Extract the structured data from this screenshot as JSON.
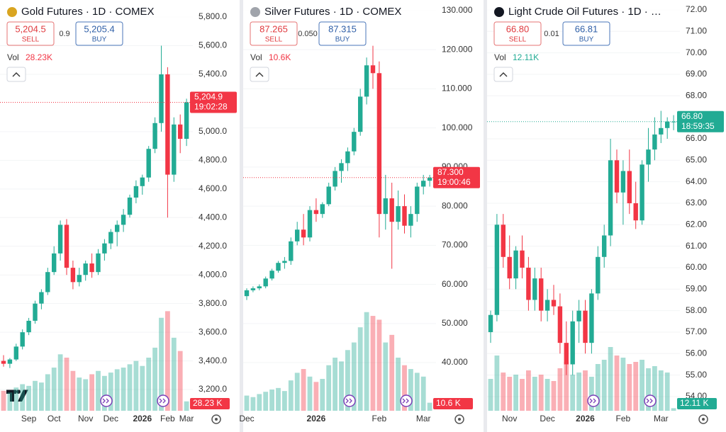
{
  "chart_data": [
    {
      "type": "candlestick",
      "title": "Gold Futures · 1D · COMEX",
      "sell": {
        "value": 5204.5,
        "label": "5,204.5"
      },
      "sell_label": "SELL",
      "spread": 0.9,
      "buy": {
        "value": 5205.4,
        "label": "5,205.4"
      },
      "buy_label": "BUY",
      "volume_label": "Vol",
      "volume": {
        "value": 28.23,
        "label": "28.23K"
      },
      "volume_marker": {
        "value": 28.23,
        "label": "28.23 K"
      },
      "last_price": {
        "value": 5204.9,
        "label": "5,204.9"
      },
      "countdown": "19:02:28",
      "icon_color": "#d9a521",
      "up_color": "#22ab94",
      "down_color": "#f23645",
      "last_color": "#f23645",
      "categories": [
        null,
        null,
        null,
        null,
        "Sep",
        null,
        null,
        null,
        "Oct",
        null,
        null,
        null,
        null,
        "Nov",
        null,
        null,
        null,
        "Dec",
        null,
        null,
        null,
        null,
        "2026",
        null,
        null,
        null,
        "Feb",
        null,
        null,
        "Mar"
      ],
      "open": [
        3400,
        3380,
        3410,
        3500,
        3600,
        3680,
        3800,
        3880,
        4020,
        4150,
        4350,
        4050,
        3950,
        4000,
        4080,
        4020,
        4150,
        4220,
        4300,
        4350,
        4420,
        4540,
        4620,
        4680,
        4880,
        5060,
        5400,
        4700,
        5050,
        4950
      ],
      "high": [
        3440,
        3420,
        3520,
        3620,
        3700,
        3820,
        3900,
        4050,
        4200,
        4380,
        4390,
        4100,
        4050,
        4100,
        4150,
        4180,
        4250,
        4320,
        4380,
        4460,
        4560,
        4660,
        4700,
        4900,
        5100,
        5600,
        5450,
        5100,
        5120,
        5230
      ],
      "low": [
        3360,
        3350,
        3400,
        3480,
        3580,
        3660,
        3760,
        3860,
        4000,
        4100,
        4000,
        3900,
        3920,
        3960,
        3980,
        4000,
        4100,
        4180,
        4200,
        4300,
        4400,
        4500,
        4560,
        4650,
        4850,
        5000,
        4400,
        4650,
        4850,
        4900
      ],
      "close": [
        3380,
        3410,
        3500,
        3600,
        3680,
        3800,
        3880,
        4020,
        4150,
        4350,
        4050,
        3950,
        4000,
        4080,
        4020,
        4150,
        4220,
        4300,
        4350,
        4420,
        4540,
        4620,
        4680,
        4880,
        5060,
        5400,
        4700,
        5050,
        4950,
        5204.9
      ],
      "volumes": [
        60,
        55,
        70,
        80,
        75,
        90,
        85,
        110,
        130,
        170,
        160,
        120,
        100,
        95,
        110,
        120,
        105,
        115,
        125,
        130,
        140,
        150,
        135,
        160,
        190,
        280,
        300,
        220,
        180,
        28.23
      ],
      "vlim": [
        0,
        320
      ],
      "ylim": [
        3052,
        5919
      ],
      "yticks": [
        {
          "value": 3200,
          "label": "3,200.0"
        },
        {
          "value": 3400,
          "label": "3,400.0"
        },
        {
          "value": 3600,
          "label": "3,600.0"
        },
        {
          "value": 3800,
          "label": "3,800.0"
        },
        {
          "value": 4000,
          "label": "4,000.0"
        },
        {
          "value": 4200,
          "label": "4,200.0"
        },
        {
          "value": 4400,
          "label": "4,400.0"
        },
        {
          "value": 4600,
          "label": "4,600.0"
        },
        {
          "value": 4800,
          "label": "4,800.0"
        },
        {
          "value": 5000,
          "label": "5,000.0"
        },
        {
          "value": 5400,
          "label": "5,400.0"
        },
        {
          "value": 5600,
          "label": "5,600.0"
        },
        {
          "value": 5800,
          "label": "5,800.0"
        }
      ]
    },
    {
      "type": "candlestick",
      "title": "Silver Futures · 1D · COMEX",
      "sell": {
        "value": 87.265,
        "label": "87.265"
      },
      "sell_label": "SELL",
      "spread": {
        "value": 0.05,
        "label": "0.050"
      },
      "buy": {
        "value": 87.315,
        "label": "87.315"
      },
      "buy_label": "BUY",
      "volume_label": "Vol",
      "volume": {
        "value": 10.6,
        "label": "10.6K"
      },
      "volume_marker": {
        "value": 10.6,
        "label": "10.6 K"
      },
      "last_price": {
        "value": 87.3,
        "label": "87.300"
      },
      "countdown": "19:00:46",
      "icon_color": "#a0a4ab",
      "up_color": "#22ab94",
      "down_color": "#f23645",
      "last_color": "#f23645",
      "categories": [
        "Dec",
        null,
        null,
        null,
        null,
        null,
        null,
        null,
        null,
        null,
        null,
        "2026",
        null,
        null,
        null,
        null,
        null,
        null,
        null,
        null,
        null,
        "Feb",
        null,
        null,
        null,
        null,
        null,
        null,
        "Mar",
        null
      ],
      "open": [
        57,
        58.5,
        59,
        59.5,
        61.5,
        63.5,
        65.5,
        66,
        71,
        74,
        72,
        79,
        78,
        80.5,
        85,
        89,
        91,
        94,
        99,
        108,
        116,
        114,
        78,
        82,
        76,
        80,
        75,
        78,
        85,
        86.5
      ],
      "high": [
        59,
        59.5,
        60,
        62,
        64,
        66,
        67,
        72,
        76,
        78,
        80,
        82,
        81,
        86,
        90,
        92,
        95,
        100,
        110,
        118,
        121,
        117,
        88,
        86,
        84,
        83,
        80,
        86,
        88,
        88
      ],
      "low": [
        56,
        58,
        58.5,
        59,
        61,
        63,
        64,
        65,
        70,
        70,
        71,
        76,
        77,
        80,
        84,
        86,
        89,
        93,
        98,
        106,
        110,
        72,
        74,
        64,
        74,
        73,
        72,
        76,
        83,
        85
      ],
      "close": [
        58.5,
        59,
        59.5,
        61.5,
        63.5,
        65.5,
        66,
        71,
        74,
        72,
        79,
        78,
        80.5,
        85,
        89,
        91,
        94,
        99,
        108,
        116,
        114,
        78,
        82,
        76,
        80,
        75,
        78,
        85,
        86.5,
        87.3
      ],
      "volumes": [
        20,
        18,
        22,
        25,
        28,
        30,
        26,
        40,
        50,
        55,
        45,
        38,
        42,
        60,
        70,
        65,
        80,
        90,
        110,
        130,
        125,
        120,
        90,
        100,
        70,
        60,
        55,
        50,
        45,
        10.6
      ],
      "vlim": [
        0,
        140
      ],
      "ylim": [
        27.7,
        132.7
      ],
      "yticks": [
        {
          "value": 40,
          "label": "40.000"
        },
        {
          "value": 50,
          "label": "50.000"
        },
        {
          "value": 60,
          "label": "60.000"
        },
        {
          "value": 70,
          "label": "70.000"
        },
        {
          "value": 80,
          "label": "80.000"
        },
        {
          "value": 90,
          "label": "90.000"
        },
        {
          "value": 100,
          "label": "100.000"
        },
        {
          "value": 110,
          "label": "110.000"
        },
        {
          "value": 120,
          "label": "120.000"
        },
        {
          "value": 130,
          "label": "130.000"
        }
      ]
    },
    {
      "type": "candlestick",
      "title": "Light Crude Oil Futures · 1D · …",
      "sell": {
        "value": 66.8,
        "label": "66.80"
      },
      "sell_label": "SELL",
      "spread": 0.01,
      "buy": {
        "value": 66.81,
        "label": "66.81"
      },
      "buy_label": "BUY",
      "volume_label": "Vol",
      "volume": {
        "value": 12.11,
        "label": "12.11K"
      },
      "volume_marker": {
        "value": 12.11,
        "label": "12.11 K"
      },
      "last_price": {
        "value": 66.8,
        "label": "66.80"
      },
      "countdown": "18:59:35",
      "icon_color": "#131722",
      "up_color": "#22ab94",
      "down_color": "#f23645",
      "last_color": "#22ab94",
      "categories": [
        null,
        null,
        null,
        "Nov",
        null,
        null,
        null,
        null,
        null,
        "Dec",
        null,
        null,
        null,
        null,
        null,
        "2026",
        null,
        null,
        null,
        null,
        null,
        "Feb",
        null,
        null,
        null,
        null,
        null,
        "Mar",
        null,
        null
      ],
      "open": [
        57,
        57.8,
        62,
        60.5,
        59.5,
        60.8,
        60,
        58.5,
        59.5,
        58,
        58.5,
        58.2,
        56.5,
        55.5,
        57.5,
        58,
        56.5,
        58.8,
        60.5,
        61.5,
        65,
        63.5,
        64.5,
        63,
        62.2,
        64.8,
        65.5,
        66.2,
        66.5,
        66.8
      ],
      "high": [
        58,
        62.5,
        62.5,
        61.5,
        61,
        61.5,
        60.5,
        60,
        60,
        59,
        59.2,
        58.8,
        57.5,
        58,
        58.5,
        58.5,
        59,
        61,
        62,
        66,
        65.5,
        65,
        65.5,
        64,
        65,
        66.5,
        67,
        67.3,
        67,
        67.1
      ],
      "low": [
        56.5,
        57.5,
        60,
        59,
        59,
        59.5,
        58,
        58,
        57.5,
        57.5,
        57.8,
        56,
        55,
        55,
        56.5,
        56,
        56,
        58.5,
        60,
        61,
        63,
        62,
        62.5,
        61.8,
        62,
        64,
        65,
        65.8,
        66,
        66.4
      ],
      "close": [
        57.8,
        62,
        60.5,
        59.5,
        60.8,
        60,
        58.5,
        59.5,
        58,
        58.5,
        58.2,
        56.5,
        55.5,
        57.5,
        58,
        56.5,
        58.8,
        60.5,
        61.5,
        65,
        63.5,
        64.5,
        63,
        62.2,
        64.8,
        65.5,
        66.2,
        66.5,
        66.8,
        66.8
      ],
      "volumes": [
        150,
        260,
        180,
        160,
        170,
        150,
        190,
        160,
        170,
        150,
        140,
        200,
        230,
        170,
        180,
        190,
        160,
        220,
        240,
        300,
        260,
        250,
        220,
        230,
        240,
        200,
        210,
        190,
        180,
        12.11
      ],
      "vlim": [
        0,
        500
      ],
      "ylim": [
        53.34,
        72.46
      ],
      "yticks": [
        {
          "value": 54,
          "label": "54.00"
        },
        {
          "value": 55,
          "label": "55.00"
        },
        {
          "value": 56,
          "label": "56.00"
        },
        {
          "value": 57,
          "label": "57.00"
        },
        {
          "value": 58,
          "label": "58.00"
        },
        {
          "value": 59,
          "label": "59.00"
        },
        {
          "value": 60,
          "label": "60.00"
        },
        {
          "value": 61,
          "label": "61.00"
        },
        {
          "value": 62,
          "label": "62.00"
        },
        {
          "value": 63,
          "label": "63.00"
        },
        {
          "value": 64,
          "label": "64.00"
        },
        {
          "value": 65,
          "label": "65.00"
        },
        {
          "value": 66,
          "label": "66.00"
        },
        {
          "value": 68,
          "label": "68.00"
        },
        {
          "value": 69,
          "label": "69.00"
        },
        {
          "value": 70,
          "label": "70.00"
        },
        {
          "value": 71,
          "label": "71.00"
        },
        {
          "value": 72,
          "label": "72.00"
        }
      ]
    }
  ]
}
